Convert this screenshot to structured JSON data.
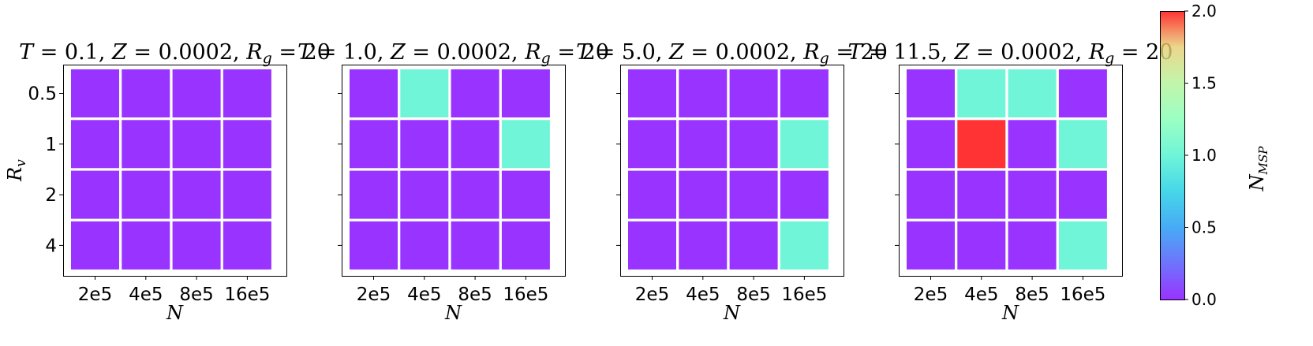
{
  "chart_data": [
    {
      "type": "heatmap",
      "title_parts": [
        "T",
        " = 0.1, ",
        "Z",
        " = 0.0002, ",
        "R",
        "g",
        " = 20"
      ],
      "xlabel": "N",
      "ylabel_parts": [
        "R",
        "v"
      ],
      "x_categories": [
        "2e5",
        "4e5",
        "8e5",
        "16e5"
      ],
      "y_categories": [
        "0.5",
        "1",
        "2",
        "4"
      ],
      "values": [
        [
          0,
          0,
          0,
          0
        ],
        [
          0,
          0,
          0,
          0
        ],
        [
          0,
          0,
          0,
          0
        ],
        [
          0,
          0,
          0,
          0
        ]
      ]
    },
    {
      "type": "heatmap",
      "title_parts": [
        "T",
        " = 1.0, ",
        "Z",
        " = 0.0002, ",
        "R",
        "g",
        " = 20"
      ],
      "xlabel": "N",
      "x_categories": [
        "2e5",
        "4e5",
        "8e5",
        "16e5"
      ],
      "y_categories": [
        "0.5",
        "1",
        "2",
        "4"
      ],
      "values": [
        [
          0,
          1,
          0,
          0
        ],
        [
          0,
          0,
          0,
          1
        ],
        [
          0,
          0,
          0,
          0
        ],
        [
          0,
          0,
          0,
          0
        ]
      ]
    },
    {
      "type": "heatmap",
      "title_parts": [
        "T",
        " = 5.0, ",
        "Z",
        " = 0.0002, ",
        "R",
        "g",
        " = 20"
      ],
      "xlabel": "N",
      "x_categories": [
        "2e5",
        "4e5",
        "8e5",
        "16e5"
      ],
      "y_categories": [
        "0.5",
        "1",
        "2",
        "4"
      ],
      "values": [
        [
          0,
          0,
          0,
          0
        ],
        [
          0,
          0,
          0,
          1
        ],
        [
          0,
          0,
          0,
          0
        ],
        [
          0,
          0,
          0,
          1
        ]
      ]
    },
    {
      "type": "heatmap",
      "title_parts": [
        "T",
        " = 11.5, ",
        "Z",
        " = 0.0002, ",
        "R",
        "g",
        " = 20"
      ],
      "xlabel": "N",
      "x_categories": [
        "2e5",
        "4e5",
        "8e5",
        "16e5"
      ],
      "y_categories": [
        "0.5",
        "1",
        "2",
        "4"
      ],
      "values": [
        [
          0,
          1,
          1,
          0
        ],
        [
          0,
          2,
          0,
          1
        ],
        [
          0,
          0,
          0,
          0
        ],
        [
          0,
          0,
          0,
          1
        ]
      ]
    }
  ],
  "colorbar": {
    "label_parts": [
      "N",
      "MSP"
    ],
    "colormap": "rainbow",
    "range": [
      0.0,
      2.0
    ],
    "ticks": [
      "0.0",
      "0.5",
      "1.0",
      "1.5",
      "2.0"
    ]
  },
  "cell_alpha": 0.8
}
